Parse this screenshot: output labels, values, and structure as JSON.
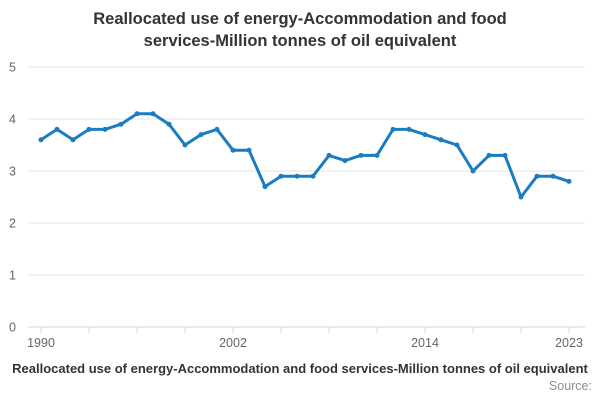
{
  "title": {
    "lines": [
      "Reallocated use of energy-Accommodation and food",
      "services-Million tonnes of oil equivalent"
    ]
  },
  "footer": {
    "series_label": "Reallocated use of energy-Accommodation and food services-Million tonnes of oil equivalent",
    "source_label": "Source:"
  },
  "colors": {
    "line": "#1a7dc2",
    "marker": "#1a7dc2",
    "gridline": "#e6e6e6",
    "axis_line": "#ccd6eb",
    "tick_label": "#666666",
    "title_text": "#333333",
    "source_text": "#8f8f8f",
    "background": "#ffffff"
  },
  "chart_data": {
    "type": "line",
    "title": "Reallocated use of energy-Accommodation and food services-Million tonnes of oil equivalent",
    "unit": "Million tonnes of oil equivalent",
    "x": [
      1990,
      1991,
      1992,
      1993,
      1994,
      1995,
      1996,
      1997,
      1998,
      1999,
      2000,
      2001,
      2002,
      2003,
      2004,
      2005,
      2006,
      2007,
      2008,
      2009,
      2010,
      2011,
      2012,
      2013,
      2014,
      2015,
      2016,
      2017,
      2018,
      2019,
      2020,
      2021,
      2022,
      2023
    ],
    "values": [
      3.6,
      3.8,
      3.6,
      3.8,
      3.8,
      3.9,
      4.1,
      4.1,
      3.9,
      3.5,
      3.7,
      3.8,
      3.4,
      3.4,
      2.7,
      2.9,
      2.9,
      2.9,
      3.3,
      3.2,
      3.3,
      3.3,
      3.8,
      3.8,
      3.7,
      3.6,
      3.5,
      3.0,
      3.3,
      3.3,
      2.5,
      2.9,
      2.9,
      2.8
    ],
    "ylim": [
      0,
      5
    ],
    "y_ticks": [
      0,
      1,
      2,
      3,
      4,
      5
    ],
    "x_tick_interval": 3,
    "x_labeled_ticks": [
      1990,
      2002,
      2014,
      2023
    ],
    "grid": "horizontal",
    "legend": "none",
    "marker": "circle"
  }
}
